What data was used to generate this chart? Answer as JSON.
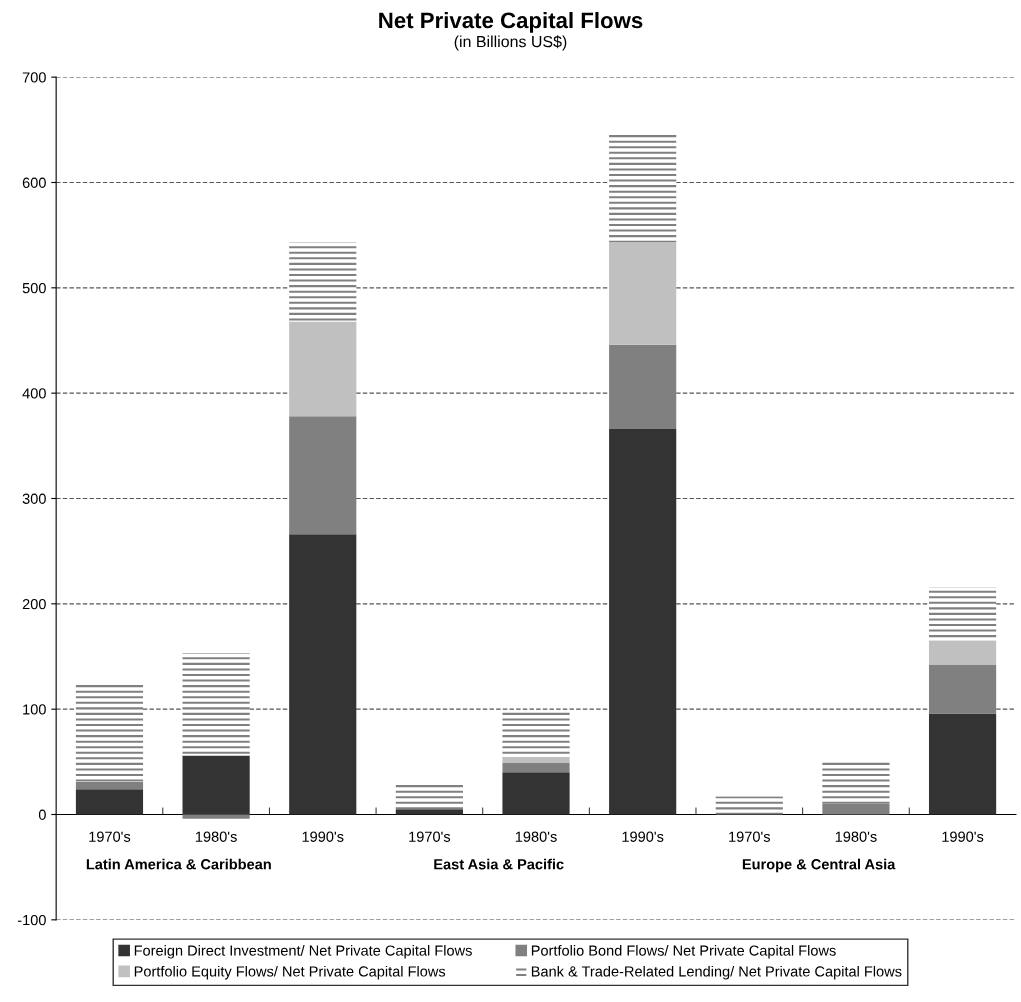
{
  "chart_data": {
    "type": "bar",
    "stacked": true,
    "title": "Net Private Capital Flows",
    "subtitle": "(in Billions US$)",
    "categories": [
      "1970's",
      "1980's",
      "1990's",
      "1970's",
      "1980's",
      "1990's",
      "1970's",
      "1980's",
      "1990's"
    ],
    "series": [
      {
        "name": "Foreign Direct Investment/ Net Private Capital Flows",
        "color": "#333333",
        "values": [
          24,
          56,
          266,
          5,
          40,
          366,
          0,
          0,
          96
        ]
      },
      {
        "name": "Portfolio Bond Flows/ Net Private Capital Flows",
        "color": "#808080",
        "values": [
          7,
          -4,
          112,
          2,
          9,
          80,
          0,
          10,
          46
        ]
      },
      {
        "name": "Portfolio Equity Flows/ Net Private Capital Flows",
        "color": "#c0c0c0",
        "values": [
          0,
          0,
          90,
          0,
          5,
          97,
          0,
          0,
          23
        ]
      },
      {
        "name": "Bank & Trade-Related Lending/ Net Private Capital Flows",
        "color": "#808080",
        "values": [
          94,
          97,
          75,
          23,
          44,
          103,
          17,
          41,
          51
        ]
      }
    ],
    "annotations": [
      "Latin America & Caribbean",
      "East Asia & Pacific",
      "Europe & Central Asia"
    ],
    "ylim": [
      -100,
      700
    ],
    "yticks": [
      -100,
      0,
      100,
      200,
      300,
      400,
      500,
      600,
      700
    ],
    "grid": "y",
    "legend": "bottom"
  }
}
